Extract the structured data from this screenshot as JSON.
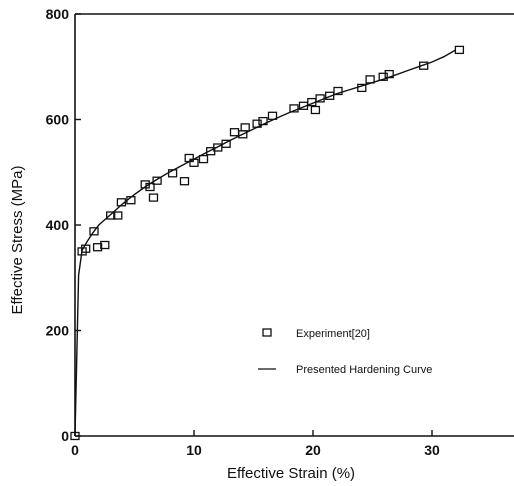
{
  "chart_data": {
    "type": "scatter",
    "xlabel": "Effective Strain (%)",
    "ylabel": "Effective Stress (MPa)",
    "xlim": [
      0,
      35
    ],
    "ylim": [
      0,
      800
    ],
    "xticks": [
      0,
      10,
      20,
      30
    ],
    "yticks": [
      0,
      200,
      400,
      600,
      800
    ],
    "xtick_labels": [
      "0",
      "10",
      "20",
      "30"
    ],
    "ytick_labels": [
      "0",
      "200",
      "400",
      "600",
      "800"
    ],
    "grid": false,
    "legend_position": "lower-right",
    "series": [
      {
        "name": "Experiment[20]",
        "type": "scatter",
        "marker": "open-square",
        "points": [
          [
            0,
            0
          ],
          [
            0.6,
            350
          ],
          [
            0.9,
            355
          ],
          [
            1.6,
            388
          ],
          [
            1.9,
            358
          ],
          [
            2.5,
            362
          ],
          [
            3.0,
            418
          ],
          [
            3.6,
            418
          ],
          [
            3.9,
            443
          ],
          [
            4.7,
            447
          ],
          [
            5.9,
            477
          ],
          [
            6.3,
            472
          ],
          [
            6.6,
            452
          ],
          [
            6.9,
            484
          ],
          [
            8.2,
            498
          ],
          [
            9.2,
            483
          ],
          [
            9.6,
            527
          ],
          [
            10.0,
            518
          ],
          [
            10.8,
            525
          ],
          [
            11.4,
            540
          ],
          [
            12.0,
            547
          ],
          [
            12.7,
            554
          ],
          [
            13.4,
            576
          ],
          [
            14.1,
            572
          ],
          [
            14.3,
            585
          ],
          [
            15.3,
            592
          ],
          [
            15.8,
            597
          ],
          [
            16.6,
            607
          ],
          [
            18.4,
            621
          ],
          [
            19.2,
            626
          ],
          [
            19.9,
            633
          ],
          [
            20.2,
            618
          ],
          [
            20.6,
            640
          ],
          [
            21.4,
            645
          ],
          [
            22.1,
            654
          ],
          [
            24.1,
            660
          ],
          [
            24.8,
            676
          ],
          [
            25.9,
            681
          ],
          [
            26.4,
            686
          ],
          [
            29.3,
            702
          ],
          [
            32.3,
            732
          ]
        ]
      },
      {
        "name": "Presented Hardening Curve",
        "type": "line",
        "x": [
          0,
          0.3,
          0.6,
          1,
          1.5,
          2,
          3,
          4,
          5,
          6,
          7,
          8,
          9,
          10,
          11,
          12,
          13,
          14,
          15,
          16,
          17,
          18,
          19,
          20,
          21,
          22,
          23,
          24,
          25,
          26,
          27,
          28,
          29,
          30,
          31,
          32
        ],
        "y": [
          0,
          305,
          352,
          368,
          385,
          400,
          420,
          440,
          458,
          474,
          488,
          501,
          513,
          525,
          537,
          548,
          560,
          571,
          582,
          593,
          603,
          613,
          622,
          631,
          640,
          649,
          656,
          663,
          670,
          677,
          685,
          693,
          701,
          709,
          719,
          732
        ]
      }
    ],
    "colors": {
      "ink": "#111111",
      "background": "#ffffff"
    }
  }
}
